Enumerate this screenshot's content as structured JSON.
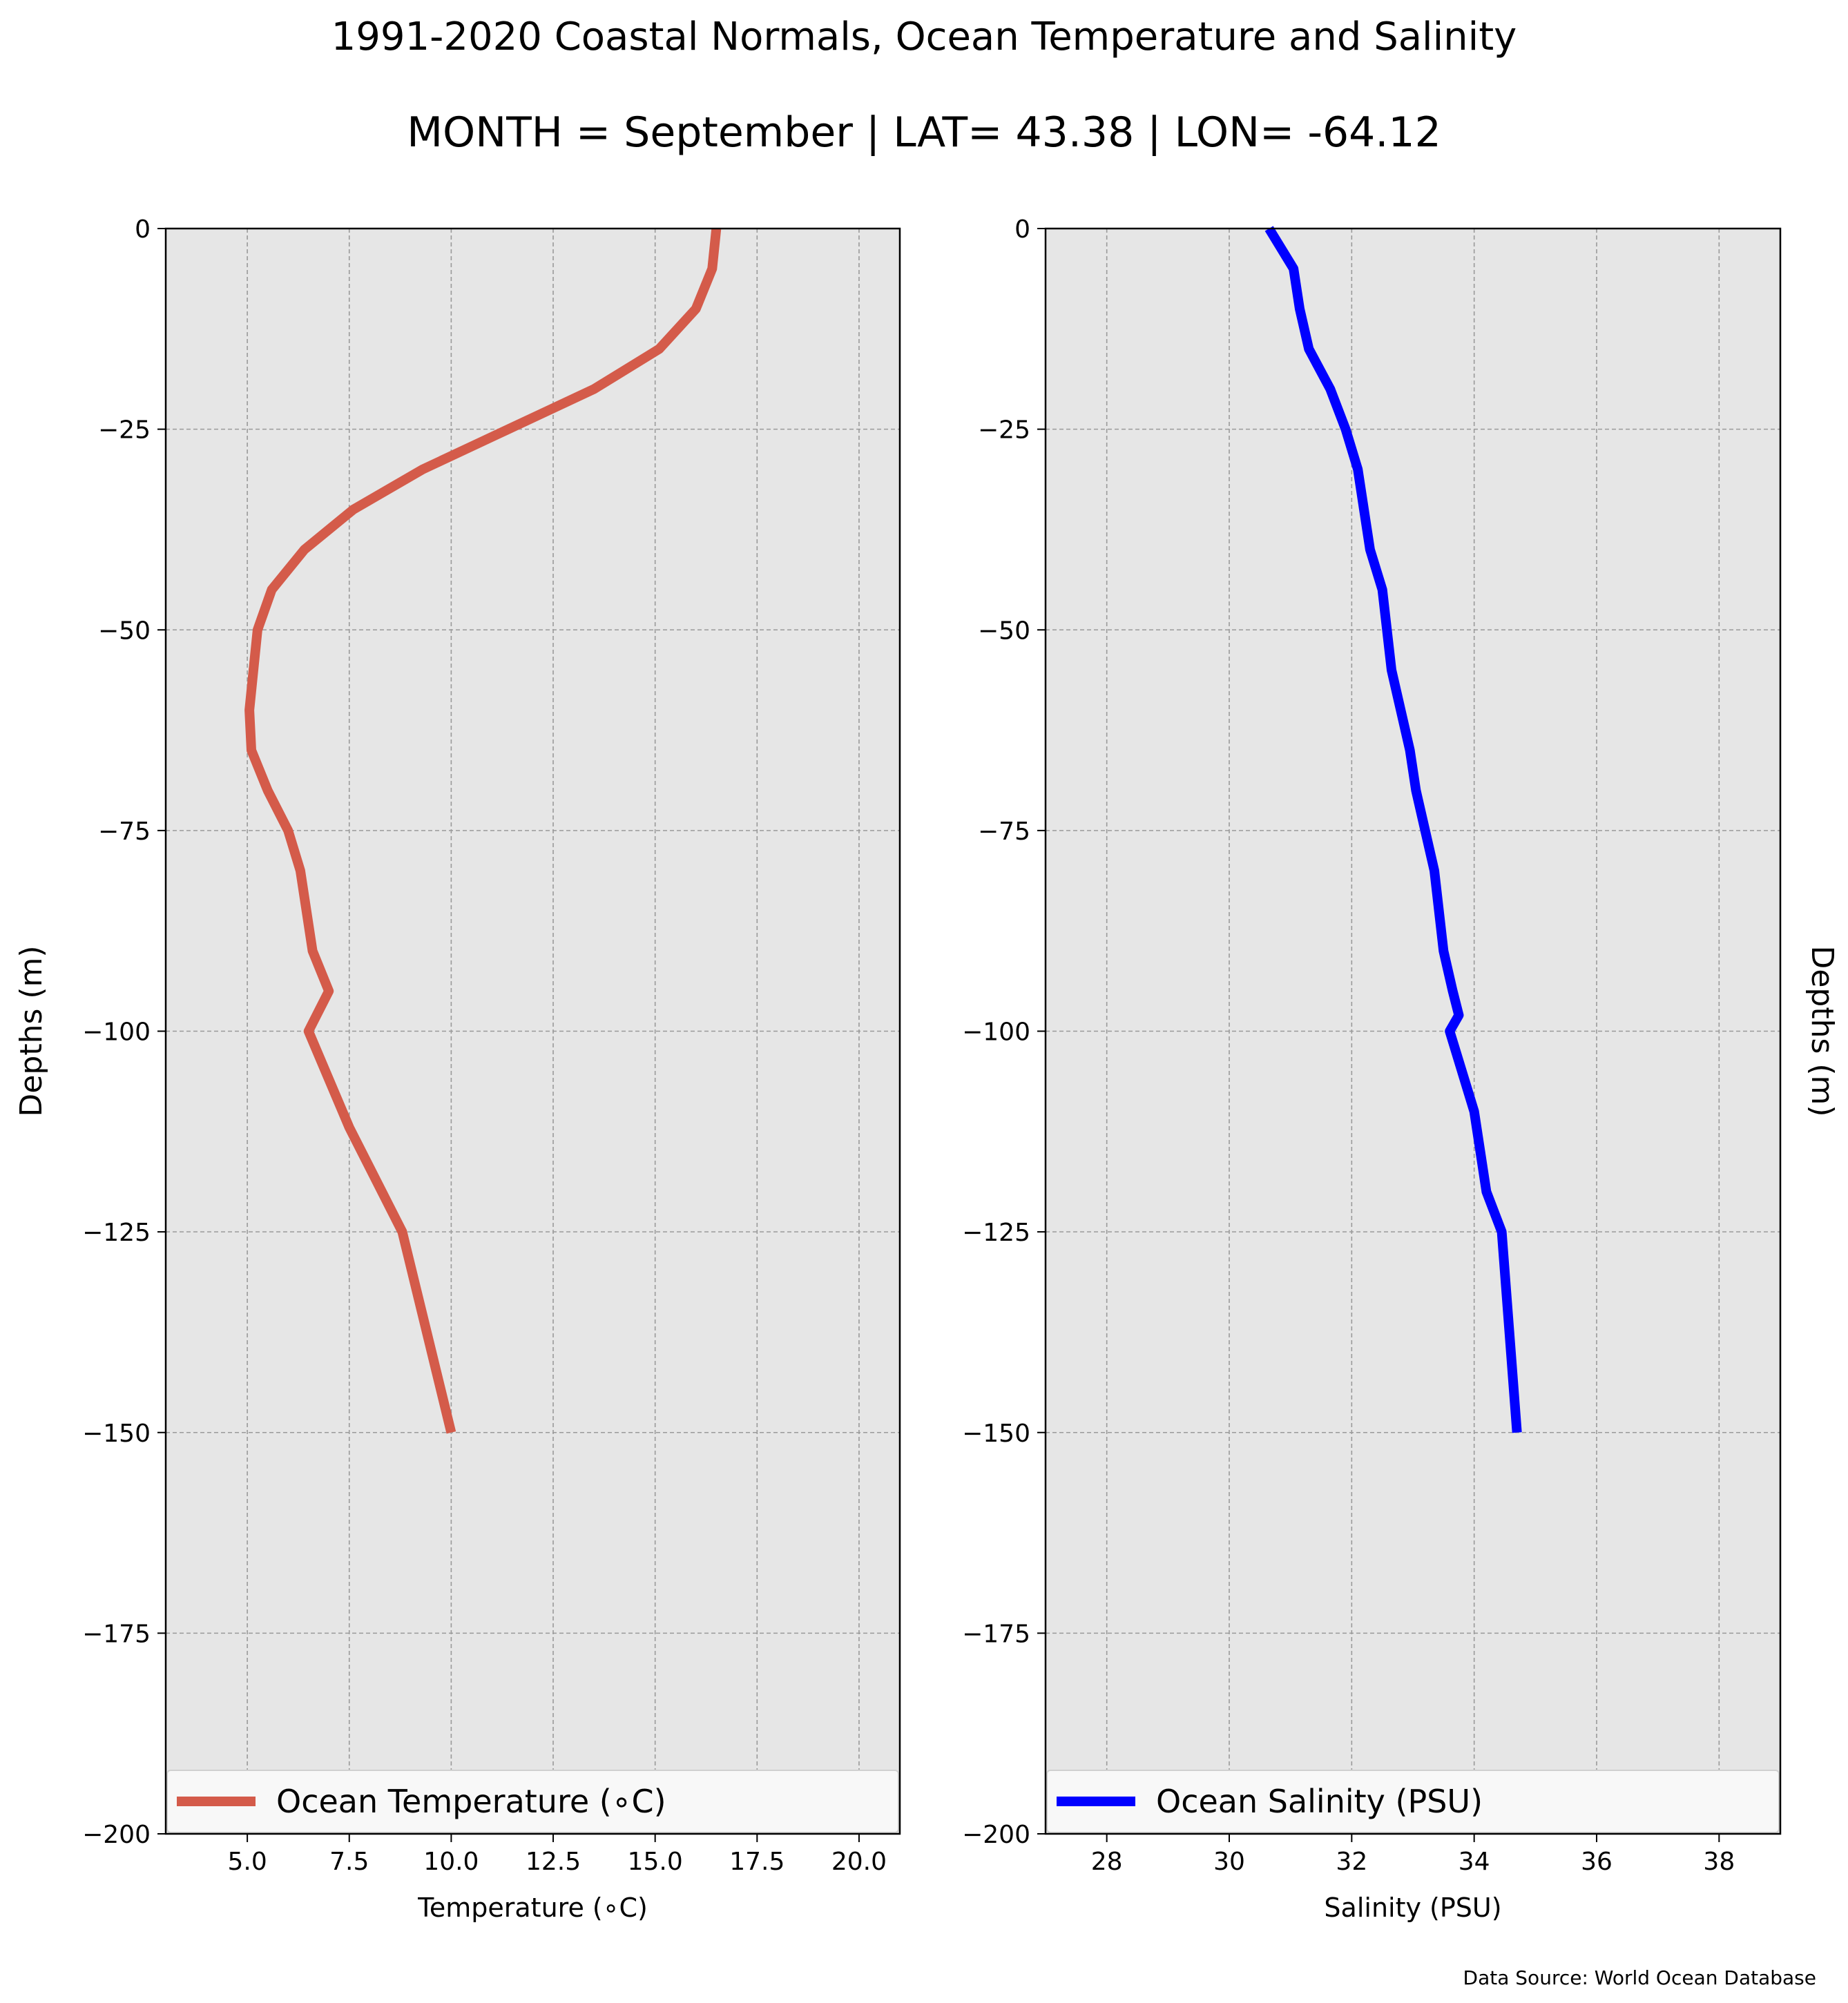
{
  "figure": {
    "title": "1991-2020 Coastal Normals, Ocean Temperature and Salinity",
    "subtitle": "MONTH = September | LAT= 43.38 | LON= -64.12",
    "source_note": "Data Source: World Ocean Database"
  },
  "chart_data": [
    {
      "type": "line",
      "title": "",
      "xlabel": "Temperature (∘C)",
      "ylabel": "Depths (m)",
      "xlim": [
        3,
        21
      ],
      "ylim": [
        -200,
        0
      ],
      "xticks": [
        5.0,
        7.5,
        10.0,
        12.5,
        15.0,
        17.5,
        20.0
      ],
      "xtick_labels": [
        "5.0",
        "7.5",
        "10.0",
        "12.5",
        "15.0",
        "17.5",
        "20.0"
      ],
      "yticks": [
        0,
        -25,
        -50,
        -75,
        -100,
        -125,
        -150,
        -175,
        -200
      ],
      "ytick_labels": [
        "0",
        "−25",
        "−50",
        "−75",
        "−100",
        "−125",
        "−150",
        "−175",
        "−200"
      ],
      "grid": true,
      "background": "#e6e6e6",
      "legend_position": "bottom",
      "ylabel_side": "left",
      "series": [
        {
          "name": "Ocean Temperature (∘C)",
          "color": "#d45b4a",
          "x": [
            16.5,
            16.4,
            16.0,
            15.1,
            13.5,
            11.4,
            9.3,
            7.6,
            6.4,
            5.6,
            5.25,
            5.15,
            5.05,
            5.1,
            5.5,
            6.0,
            6.3,
            6.6,
            7.0,
            6.5,
            7.5,
            8.8,
            10.0
          ],
          "y": [
            0,
            -5,
            -10,
            -15,
            -20,
            -25,
            -30,
            -35,
            -40,
            -45,
            -50,
            -55,
            -60,
            -65,
            -70,
            -75,
            -80,
            -90,
            -95,
            -100,
            -112,
            -125,
            -150
          ]
        }
      ]
    },
    {
      "type": "line",
      "title": "",
      "xlabel": "Salinity (PSU)",
      "ylabel": "Depths (m)",
      "xlim": [
        27,
        39
      ],
      "ylim": [
        -200,
        0
      ],
      "xticks": [
        28,
        30,
        32,
        34,
        36,
        38
      ],
      "xtick_labels": [
        "28",
        "30",
        "32",
        "34",
        "36",
        "38"
      ],
      "yticks": [
        0,
        -25,
        -50,
        -75,
        -100,
        -125,
        -150,
        -175,
        -200
      ],
      "ytick_labels": [
        "0",
        "−25",
        "−50",
        "−75",
        "−100",
        "−125",
        "−150",
        "−175",
        "−200"
      ],
      "grid": true,
      "background": "#e6e6e6",
      "legend_position": "bottom",
      "ylabel_side": "right",
      "series": [
        {
          "name": "Ocean Salinity (PSU)",
          "color": "#0000ff",
          "x": [
            30.65,
            31.05,
            31.15,
            31.3,
            31.65,
            31.9,
            32.1,
            32.3,
            32.5,
            32.65,
            32.8,
            32.95,
            33.05,
            33.2,
            33.35,
            33.5,
            33.65,
            33.75,
            33.6,
            34.0,
            34.2,
            34.45,
            34.7
          ],
          "y": [
            0,
            -5,
            -10,
            -15,
            -20,
            -25,
            -30,
            -40,
            -45,
            -55,
            -60,
            -65,
            -70,
            -75,
            -80,
            -90,
            -95,
            -98,
            -100,
            -110,
            -120,
            -125,
            -150
          ]
        }
      ]
    }
  ]
}
